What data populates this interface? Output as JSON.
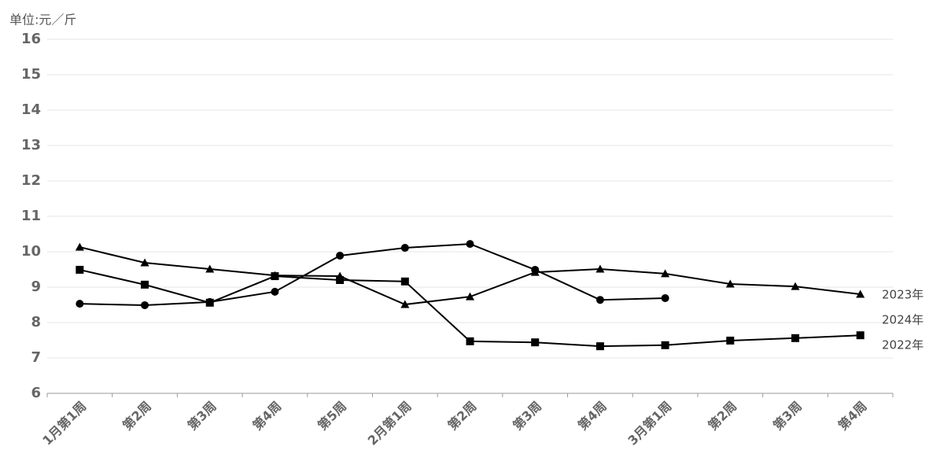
{
  "chart_data": {
    "type": "line",
    "y_label": "单位:元／斤",
    "categories": [
      "1月第1周",
      "第2周",
      "第3周",
      "第4周",
      "第5周",
      "2月第1周",
      "第2周",
      "第3周",
      "第4周",
      "3月第1周",
      "第2周",
      "第3周",
      "第4周"
    ],
    "series": [
      {
        "name": "2023年",
        "color": "#000000",
        "marker": "triangle",
        "values": [
          10.13,
          9.69,
          9.51,
          9.33,
          9.31,
          8.51,
          8.73,
          9.42,
          9.51,
          9.38,
          9.09,
          9.02,
          8.8
        ]
      },
      {
        "name": "2024年",
        "color": "#000000",
        "marker": "circle",
        "values": [
          8.53,
          8.49,
          8.58,
          8.87,
          9.89,
          10.11,
          10.22,
          9.49,
          8.64,
          8.69,
          null,
          null,
          null
        ]
      },
      {
        "name": "2022年",
        "color": "#000000",
        "marker": "square",
        "values": [
          9.49,
          9.07,
          8.56,
          9.31,
          9.2,
          9.16,
          7.47,
          7.44,
          7.33,
          7.36,
          7.49,
          7.56,
          7.64
        ]
      }
    ],
    "ylim": [
      6,
      16
    ],
    "yticks": [
      6,
      7,
      8,
      9,
      10,
      11,
      12,
      13,
      14,
      15,
      16
    ],
    "grid": true
  }
}
